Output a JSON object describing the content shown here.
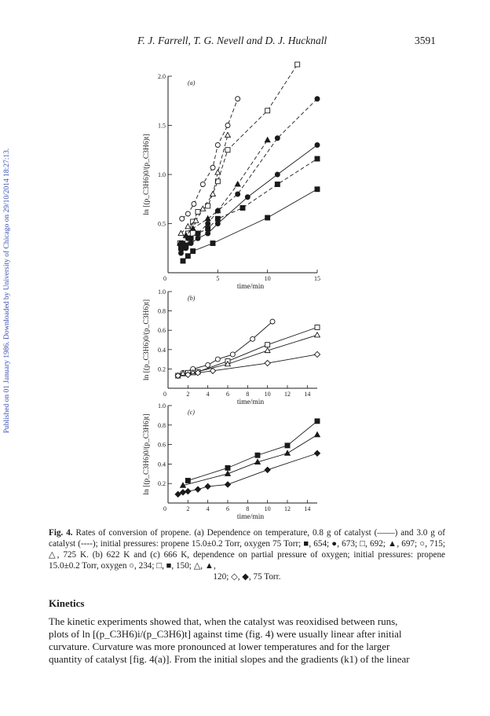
{
  "sidebar_text": "Published on 01 January 1986. Downloaded by University of Chicago on 29/10/2014 18:27:13.",
  "header": {
    "authors": "F. J. Farrell, T. G. Nevell and D. J. Hucknall",
    "page_number": "3591"
  },
  "figure": {
    "ylabel": "ln [(p_C3H6)0/(p_C3H6)t]",
    "xlabel": "time/min"
  },
  "chart_data": [
    {
      "type": "line",
      "panel_label": "(a)",
      "xlabel": "time/min",
      "ylabel": "ln [(p_C3H6)0/(p_C3H6)t]",
      "xlim": [
        0,
        15
      ],
      "ylim": [
        0,
        2.0
      ],
      "xticks": [
        5,
        10,
        15
      ],
      "yticks": [
        0.5,
        1.0,
        1.5,
        2.0
      ],
      "series": [
        {
          "marker": "square-filled",
          "line": "solid",
          "x": [
            1.5,
            2.0,
            2.5,
            4.5,
            10.0,
            15.0
          ],
          "y": [
            0.12,
            0.17,
            0.22,
            0.3,
            0.56,
            0.85
          ]
        },
        {
          "marker": "circle-filled",
          "line": "solid",
          "x": [
            1.3,
            1.8,
            2.3,
            3.0,
            4.0,
            5.0,
            8.0,
            11.0,
            15.0
          ],
          "y": [
            0.2,
            0.25,
            0.3,
            0.35,
            0.4,
            0.5,
            0.77,
            1.0,
            1.3
          ]
        },
        {
          "marker": "square-open",
          "line": "dashed",
          "x": [
            1.2,
            2.0,
            2.5,
            3.0,
            4.0,
            5.0,
            6.0,
            10.0,
            13.0
          ],
          "y": [
            0.3,
            0.4,
            0.52,
            0.62,
            0.68,
            0.93,
            1.25,
            1.65,
            2.12
          ]
        },
        {
          "marker": "square-filled",
          "line": "dashed",
          "x": [
            1.3,
            1.8,
            2.3,
            3.0,
            4.0,
            5.0,
            7.5,
            11.0,
            15.0
          ],
          "y": [
            0.25,
            0.28,
            0.35,
            0.4,
            0.45,
            0.55,
            0.66,
            0.9,
            1.16
          ]
        },
        {
          "marker": "circle-filled",
          "line": "dashed",
          "x": [
            1.5,
            2.0,
            3.0,
            4.0,
            5.0,
            7.0,
            11.0,
            15.0
          ],
          "y": [
            0.3,
            0.35,
            0.4,
            0.5,
            0.63,
            0.8,
            1.37,
            1.77
          ]
        },
        {
          "marker": "triangle-filled",
          "line": "dashed",
          "x": [
            1.2,
            1.8,
            2.5,
            4.0,
            5.0,
            7.0,
            10.0
          ],
          "y": [
            0.3,
            0.38,
            0.45,
            0.55,
            0.63,
            0.9,
            1.35
          ]
        },
        {
          "marker": "triangle-open",
          "line": "dashed",
          "x": [
            1.3,
            2.0,
            2.8,
            3.5,
            4.5,
            5.0,
            6.0
          ],
          "y": [
            0.4,
            0.47,
            0.53,
            0.65,
            0.8,
            1.02,
            1.4
          ]
        },
        {
          "marker": "circle-open",
          "line": "dashed",
          "x": [
            1.4,
            2.0,
            2.6,
            3.5,
            4.5,
            5.0,
            6.0,
            7.0
          ],
          "y": [
            0.55,
            0.6,
            0.7,
            0.9,
            1.07,
            1.3,
            1.5,
            1.77
          ]
        }
      ]
    },
    {
      "type": "line",
      "panel_label": "(b)",
      "xlabel": "time/min",
      "ylabel": "ln [(p_C3H6)0/(p_C3H6)t]",
      "xlim": [
        0,
        15
      ],
      "ylim": [
        0,
        1.0
      ],
      "xticks": [
        2,
        4,
        6,
        8,
        10,
        12,
        14
      ],
      "yticks": [
        0.2,
        0.4,
        0.6,
        0.8,
        1.0
      ],
      "series": [
        {
          "marker": "circle-open",
          "line": "solid",
          "x": [
            1.5,
            2.5,
            4.0,
            5.0,
            6.5,
            8.5,
            10.5
          ],
          "y": [
            0.16,
            0.2,
            0.24,
            0.3,
            0.35,
            0.51,
            0.69
          ]
        },
        {
          "marker": "square-open",
          "line": "solid",
          "x": [
            1.0,
            2.0,
            3.0,
            6.0,
            10.0,
            15.0
          ],
          "y": [
            0.13,
            0.16,
            0.17,
            0.28,
            0.45,
            0.63
          ]
        },
        {
          "marker": "triangle-open",
          "line": "solid",
          "x": [
            1.5,
            2.5,
            6.0,
            10.0,
            15.0
          ],
          "y": [
            0.15,
            0.16,
            0.25,
            0.39,
            0.55
          ]
        },
        {
          "marker": "diamond-open",
          "line": "solid",
          "x": [
            1.0,
            2.0,
            3.0,
            4.5,
            10.0,
            15.0
          ],
          "y": [
            0.13,
            0.14,
            0.16,
            0.18,
            0.26,
            0.35
          ]
        }
      ]
    },
    {
      "type": "line",
      "panel_label": "(c)",
      "xlabel": "time/min",
      "ylabel": "ln [(p_C3H6)0/(p_C3H6)t]",
      "xlim": [
        0,
        15
      ],
      "ylim": [
        0,
        1.0
      ],
      "xticks": [
        2,
        4,
        6,
        8,
        10,
        12,
        14
      ],
      "yticks": [
        0.2,
        0.4,
        0.6,
        0.8,
        1.0
      ],
      "series": [
        {
          "marker": "square-filled",
          "line": "solid",
          "x": [
            2.0,
            6.0,
            9.0,
            12.0,
            15.0
          ],
          "y": [
            0.23,
            0.36,
            0.49,
            0.59,
            0.84
          ]
        },
        {
          "marker": "triangle-filled",
          "line": "solid",
          "x": [
            1.5,
            6.0,
            9.0,
            12.0,
            15.0
          ],
          "y": [
            0.18,
            0.3,
            0.42,
            0.51,
            0.7
          ]
        },
        {
          "marker": "diamond-filled",
          "line": "solid",
          "x": [
            1.0,
            1.5,
            2.0,
            3.0,
            4.0,
            6.0,
            10.0,
            15.0
          ],
          "y": [
            0.09,
            0.11,
            0.12,
            0.14,
            0.17,
            0.19,
            0.34,
            0.51
          ]
        }
      ]
    }
  ],
  "caption": {
    "label": "Fig. 4.",
    "lines": [
      "Rates of conversion of propene. (a) Dependence on temperature, 0.8 g of catalyst (——)",
      "and 3.0 g of catalyst (----); initial pressures: propene 15.0±0.2 Torr, oxygen 75 Torr; ■, 654;",
      "●, 673; □, 692; ▲, 697; ○, 715; △, 725 K. (b) 622 K and (c) 666 K, dependence on partial",
      "pressure of oxygen; initial pressures: propene 15.0±0.2 Torr, oxygen ○, 234; □, ■, 150; △, ▲,",
      "120; ◇, ◆, 75 Torr."
    ]
  },
  "section_heading": "Kinetics",
  "body_lines": [
    "The kinetic experiments showed that, when the catalyst was reoxidised between runs,",
    "plots of ln [(p_C3H6)i/(p_C3H6)t] against time (fig. 4) were usually linear after initial",
    "curvature. Curvature was more pronounced at lower temperatures and for the larger",
    "quantity of catalyst [fig. 4(a)]. From the initial slopes and the gradients (k1) of the linear"
  ]
}
